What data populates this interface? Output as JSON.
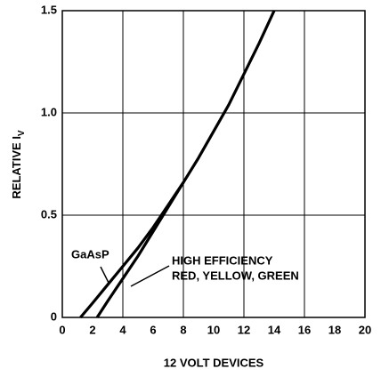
{
  "chart_data": {
    "type": "line",
    "ylabel": {
      "text": "RELATIVE I",
      "subscript": "V"
    },
    "xlabel": "12 VOLT DEVICES",
    "xlim": [
      0,
      20
    ],
    "ylim": [
      0,
      1.5
    ],
    "xticks": [
      0,
      2,
      4,
      6,
      8,
      10,
      12,
      14,
      16,
      18,
      20
    ],
    "yticks": [
      0,
      0.5,
      {
        "value": 1,
        "label": "1.0"
      },
      1.5
    ],
    "grid": true,
    "series": [
      {
        "name": [
          "GaAsP"
        ],
        "color": "#000000",
        "x": [
          1.2,
          2,
          3,
          4,
          5,
          6,
          7,
          8,
          9,
          10,
          11,
          12,
          13,
          14
        ],
        "values": [
          0,
          0.07,
          0.16,
          0.25,
          0.34,
          0.44,
          0.55,
          0.66,
          0.78,
          0.91,
          1.04,
          1.19,
          1.34,
          1.5
        ]
      },
      {
        "name": [
          "HIGH EFFICIENCY",
          "RED, YELLOW, GREEN"
        ],
        "color": "#000000",
        "x": [
          2.3,
          3,
          4,
          5,
          6,
          7,
          8
        ],
        "values": [
          0,
          0.08,
          0.19,
          0.3,
          0.42,
          0.54,
          0.66
        ]
      }
    ]
  }
}
